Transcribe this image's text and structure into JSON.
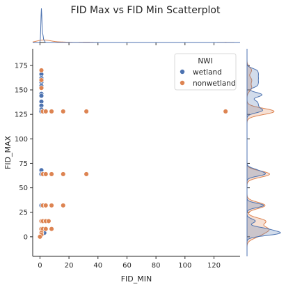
{
  "chart_data": {
    "type": "scatter",
    "title": "FID Max vs FID Min Scatterplot",
    "xlabel": "FID_MIN",
    "ylabel": "FID_MAX",
    "xlim": [
      -5,
      138
    ],
    "ylim": [
      -20,
      192
    ],
    "xticks": [
      0,
      20,
      40,
      60,
      80,
      100,
      120
    ],
    "yticks": [
      0,
      25,
      50,
      75,
      100,
      125,
      150,
      175
    ],
    "legend": {
      "title": "NWI",
      "placement": "top-right"
    },
    "grid": false,
    "marginals": {
      "top": "kde",
      "right": "kde"
    },
    "series": [
      {
        "name": "wetland",
        "color": "#4c72b0",
        "points": [
          [
            1,
            170
          ],
          [
            1,
            166
          ],
          [
            1,
            162
          ],
          [
            1,
            158
          ],
          [
            1,
            154
          ],
          [
            1,
            146
          ],
          [
            1,
            144
          ],
          [
            1,
            138
          ],
          [
            1,
            134
          ],
          [
            1,
            130
          ],
          [
            1,
            128
          ],
          [
            1,
            68
          ],
          [
            1,
            64
          ],
          [
            2,
            64
          ],
          [
            1,
            32
          ],
          [
            2,
            32
          ],
          [
            1,
            16
          ],
          [
            1,
            8
          ],
          [
            2,
            8
          ],
          [
            2,
            4
          ],
          [
            3,
            4
          ],
          [
            1,
            4
          ],
          [
            1,
            2
          ]
        ]
      },
      {
        "name": "nonwetland",
        "color": "#dd8452",
        "points": [
          [
            1,
            170
          ],
          [
            1,
            160
          ],
          [
            1,
            152
          ],
          [
            2,
            128
          ],
          [
            4,
            128
          ],
          [
            8,
            128
          ],
          [
            16,
            128
          ],
          [
            32,
            128
          ],
          [
            128,
            128
          ],
          [
            2,
            64
          ],
          [
            4,
            64
          ],
          [
            8,
            64
          ],
          [
            16,
            64
          ],
          [
            32,
            64
          ],
          [
            2,
            32
          ],
          [
            4,
            32
          ],
          [
            8,
            32
          ],
          [
            16,
            32
          ],
          [
            1,
            16
          ],
          [
            2,
            16
          ],
          [
            4,
            16
          ],
          [
            6,
            16
          ],
          [
            1,
            8
          ],
          [
            2,
            8
          ],
          [
            4,
            8
          ],
          [
            8,
            8
          ],
          [
            1,
            4
          ],
          [
            1,
            2
          ],
          [
            0,
            0
          ]
        ]
      }
    ]
  }
}
